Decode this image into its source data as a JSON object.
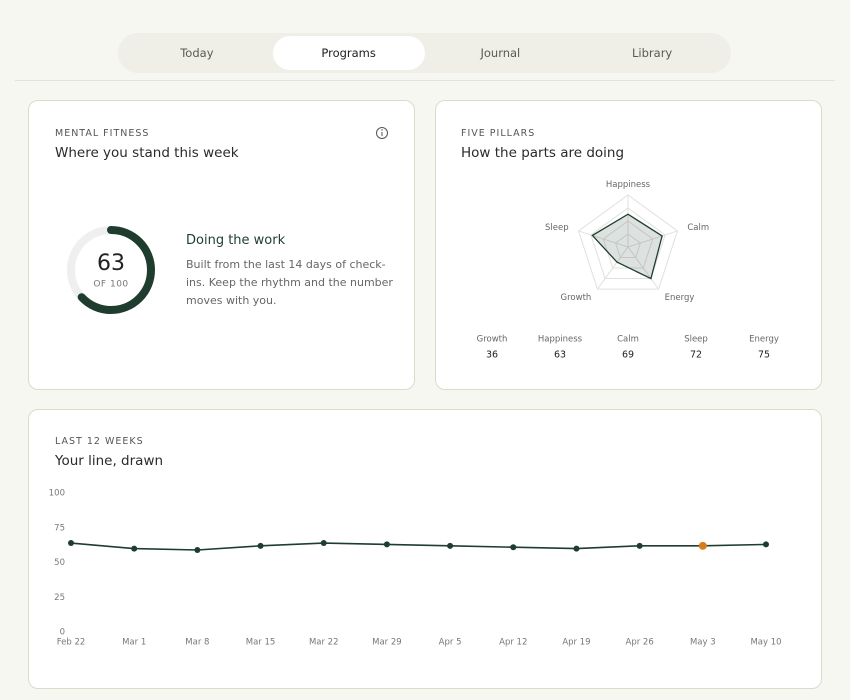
{
  "tabs": {
    "items": [
      "Today",
      "Programs",
      "Journal",
      "Library"
    ],
    "active": 1
  },
  "mental_fitness": {
    "label": "MENTAL FITNESS",
    "title": "Where you stand this week",
    "score": 63,
    "score_max": 100,
    "score_max_label": "OF 100",
    "color": "#1e3d2f",
    "heading": "Doing the work",
    "body": "Built from the last 14 days of check-ins. Keep the rhythm and the number moves with you."
  },
  "five_pillars": {
    "label": "FIVE PILLARS",
    "title": "How the parts are doing",
    "chart_data": {
      "type": "radar",
      "categories": [
        "Happiness",
        "Calm",
        "Energy",
        "Growth",
        "Sleep"
      ],
      "values": [
        63,
        69,
        75,
        36,
        72
      ],
      "rlim": [
        0,
        100
      ],
      "color": "#1e3d2f"
    },
    "scores": [
      {
        "name": "Growth",
        "value": 36
      },
      {
        "name": "Happiness",
        "value": 63
      },
      {
        "name": "Calm",
        "value": 69
      },
      {
        "name": "Sleep",
        "value": 72
      },
      {
        "name": "Energy",
        "value": 75
      }
    ]
  },
  "trend": {
    "label": "LAST 12 WEEKS",
    "title": "Your line, drawn",
    "chart_data": {
      "type": "line",
      "categories": [
        "Feb 22",
        "Mar 1",
        "Mar 8",
        "Mar 15",
        "Mar 22",
        "Mar 29",
        "Apr 5",
        "Apr 12",
        "Apr 19",
        "Apr 26",
        "May 3",
        "May 10"
      ],
      "values": [
        64,
        60,
        59,
        62,
        64,
        63,
        62,
        61,
        60,
        62,
        62,
        63
      ],
      "ylim": [
        0,
        100
      ],
      "yticks": [
        0,
        25,
        50,
        75,
        100
      ],
      "color": "#1e3d2f",
      "highlight_index": 10,
      "highlight_color": "#d97d1c"
    }
  }
}
